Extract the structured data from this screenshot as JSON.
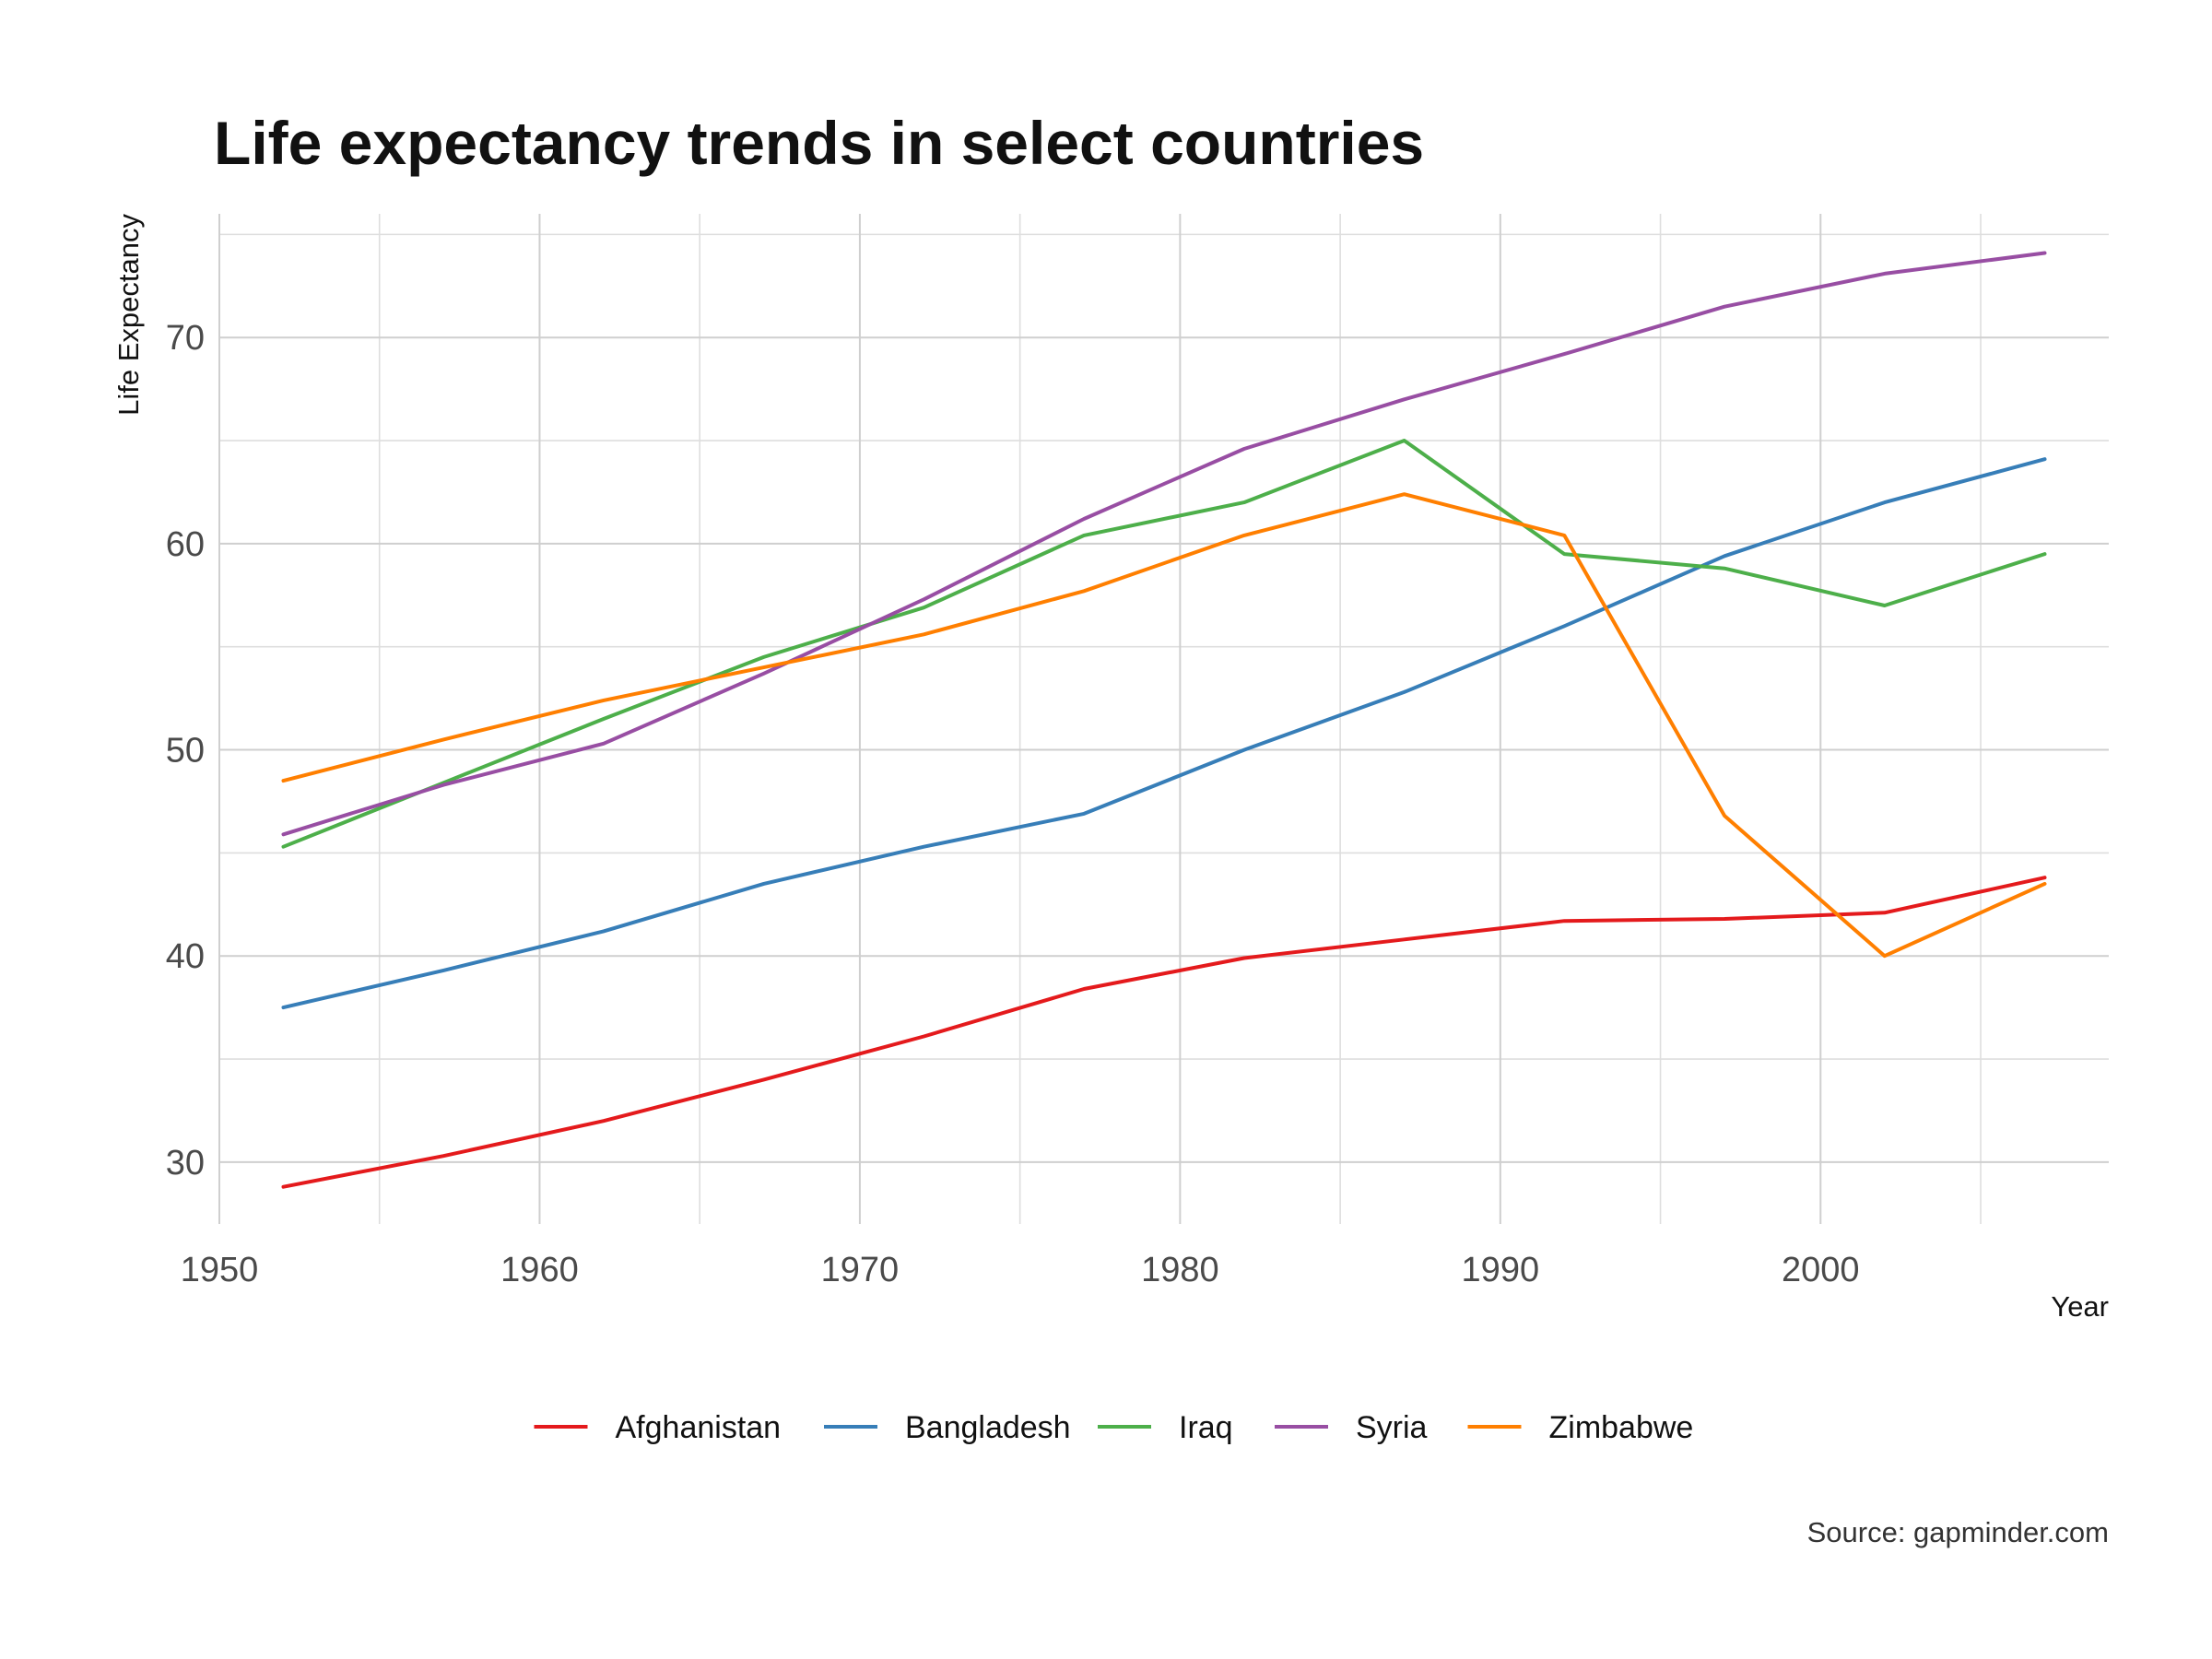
{
  "chart_data": {
    "type": "line",
    "title": "Life expectancy trends in select countries",
    "xlabel": "Year",
    "ylabel": "Life Expectancy",
    "caption": "Source: gapminder.com",
    "xlim": [
      1950,
      2009
    ],
    "ylim": [
      27,
      76
    ],
    "x_major_ticks": [
      1950,
      1960,
      1970,
      1980,
      1990,
      2000
    ],
    "x_minor_ticks": [
      1955,
      1965,
      1975,
      1985,
      1995,
      2005
    ],
    "y_major_ticks": [
      30,
      40,
      50,
      60,
      70
    ],
    "y_minor_ticks": [
      35,
      45,
      55,
      65,
      75
    ],
    "grid": true,
    "legend_position": "bottom",
    "x": [
      1952,
      1957,
      1962,
      1967,
      1972,
      1977,
      1982,
      1987,
      1992,
      1997,
      2002,
      2007
    ],
    "series": [
      {
        "name": "Afghanistan",
        "color": "#e41a1c",
        "values": [
          28.8,
          30.3,
          32.0,
          34.0,
          36.1,
          38.4,
          39.9,
          40.8,
          41.7,
          41.8,
          42.1,
          43.8
        ]
      },
      {
        "name": "Bangladesh",
        "color": "#377eb8",
        "values": [
          37.5,
          39.3,
          41.2,
          43.5,
          45.3,
          46.9,
          50.0,
          52.8,
          56.0,
          59.4,
          62.0,
          64.1
        ]
      },
      {
        "name": "Iraq",
        "color": "#4daf4a",
        "values": [
          45.3,
          48.4,
          51.5,
          54.5,
          56.9,
          60.4,
          62.0,
          65.0,
          59.5,
          58.8,
          57.0,
          59.5
        ]
      },
      {
        "name": "Syria",
        "color": "#984ea3",
        "values": [
          45.9,
          48.3,
          50.3,
          53.7,
          57.3,
          61.2,
          64.6,
          67.0,
          69.2,
          71.5,
          73.1,
          74.1
        ]
      },
      {
        "name": "Zimbabwe",
        "color": "#ff7f00",
        "values": [
          48.5,
          50.5,
          52.4,
          54.0,
          55.6,
          57.7,
          60.4,
          62.4,
          60.4,
          46.8,
          40.0,
          43.5
        ]
      }
    ]
  }
}
